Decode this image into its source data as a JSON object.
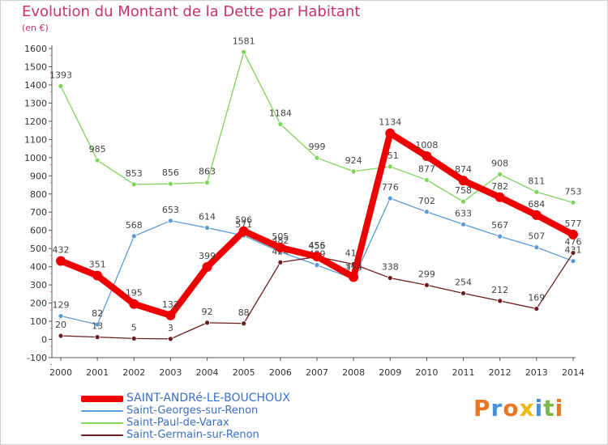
{
  "title": "Evolution du Montant de la Dette par Habitant",
  "subtitle": "(en €)",
  "logo": [
    "P",
    "r",
    "o",
    "x",
    "i",
    "t",
    "i"
  ],
  "logo_colors": [
    "#e87722",
    "#4a8fd6",
    "#e87722",
    "#f2b705",
    "#4a8fd6",
    "#7ab648",
    "#e87722"
  ],
  "chart_data": {
    "type": "line",
    "ylim": [
      -100,
      1600
    ],
    "ytick_step": 100,
    "grid": false,
    "legend_position": "bottom-left",
    "categories": [
      "2000",
      "2001",
      "2002",
      "2003",
      "2004",
      "2005",
      "2006",
      "2007",
      "2008",
      "2009",
      "2010",
      "2011",
      "2012",
      "2013",
      "2014"
    ],
    "series": [
      {
        "name": "Saint-Paul-de-Varax",
        "color": "#7dd55a",
        "values": [
          1393,
          985,
          853,
          856,
          863,
          1581,
          1184,
          999,
          924,
          951,
          877,
          758,
          908,
          811,
          753
        ]
      },
      {
        "name": "Saint-Georges-sur-Renon",
        "color": "#5b9bd5",
        "values": [
          129,
          82,
          568,
          653,
          614,
          571,
          482,
          409,
          333,
          776,
          702,
          633,
          567,
          507,
          431
        ]
      },
      {
        "name": "Saint-Germain-sur-Renon",
        "color": "#6b1d1d",
        "values": [
          20,
          13,
          5,
          3,
          92,
          88,
          424,
          455,
          414,
          338,
          299,
          254,
          212,
          169,
          476
        ]
      },
      {
        "name": "SAINT-ANDRé-LE-BOUCHOUX",
        "color": "#ee0000",
        "values": [
          432,
          351,
          195,
          132,
          399,
          596,
          505,
          456,
          343,
          1134,
          1008,
          874,
          782,
          684,
          577
        ]
      }
    ]
  },
  "legend": [
    {
      "label": "SAINT-ANDRé-LE-BOUCHOUX",
      "color": "#ee0000"
    },
    {
      "label": "Saint-Georges-sur-Renon",
      "color": "#5b9bd5"
    },
    {
      "label": "Saint-Paul-de-Varax",
      "color": "#7dd55a"
    },
    {
      "label": "Saint-Germain-sur-Renon",
      "color": "#6b1d1d"
    }
  ]
}
